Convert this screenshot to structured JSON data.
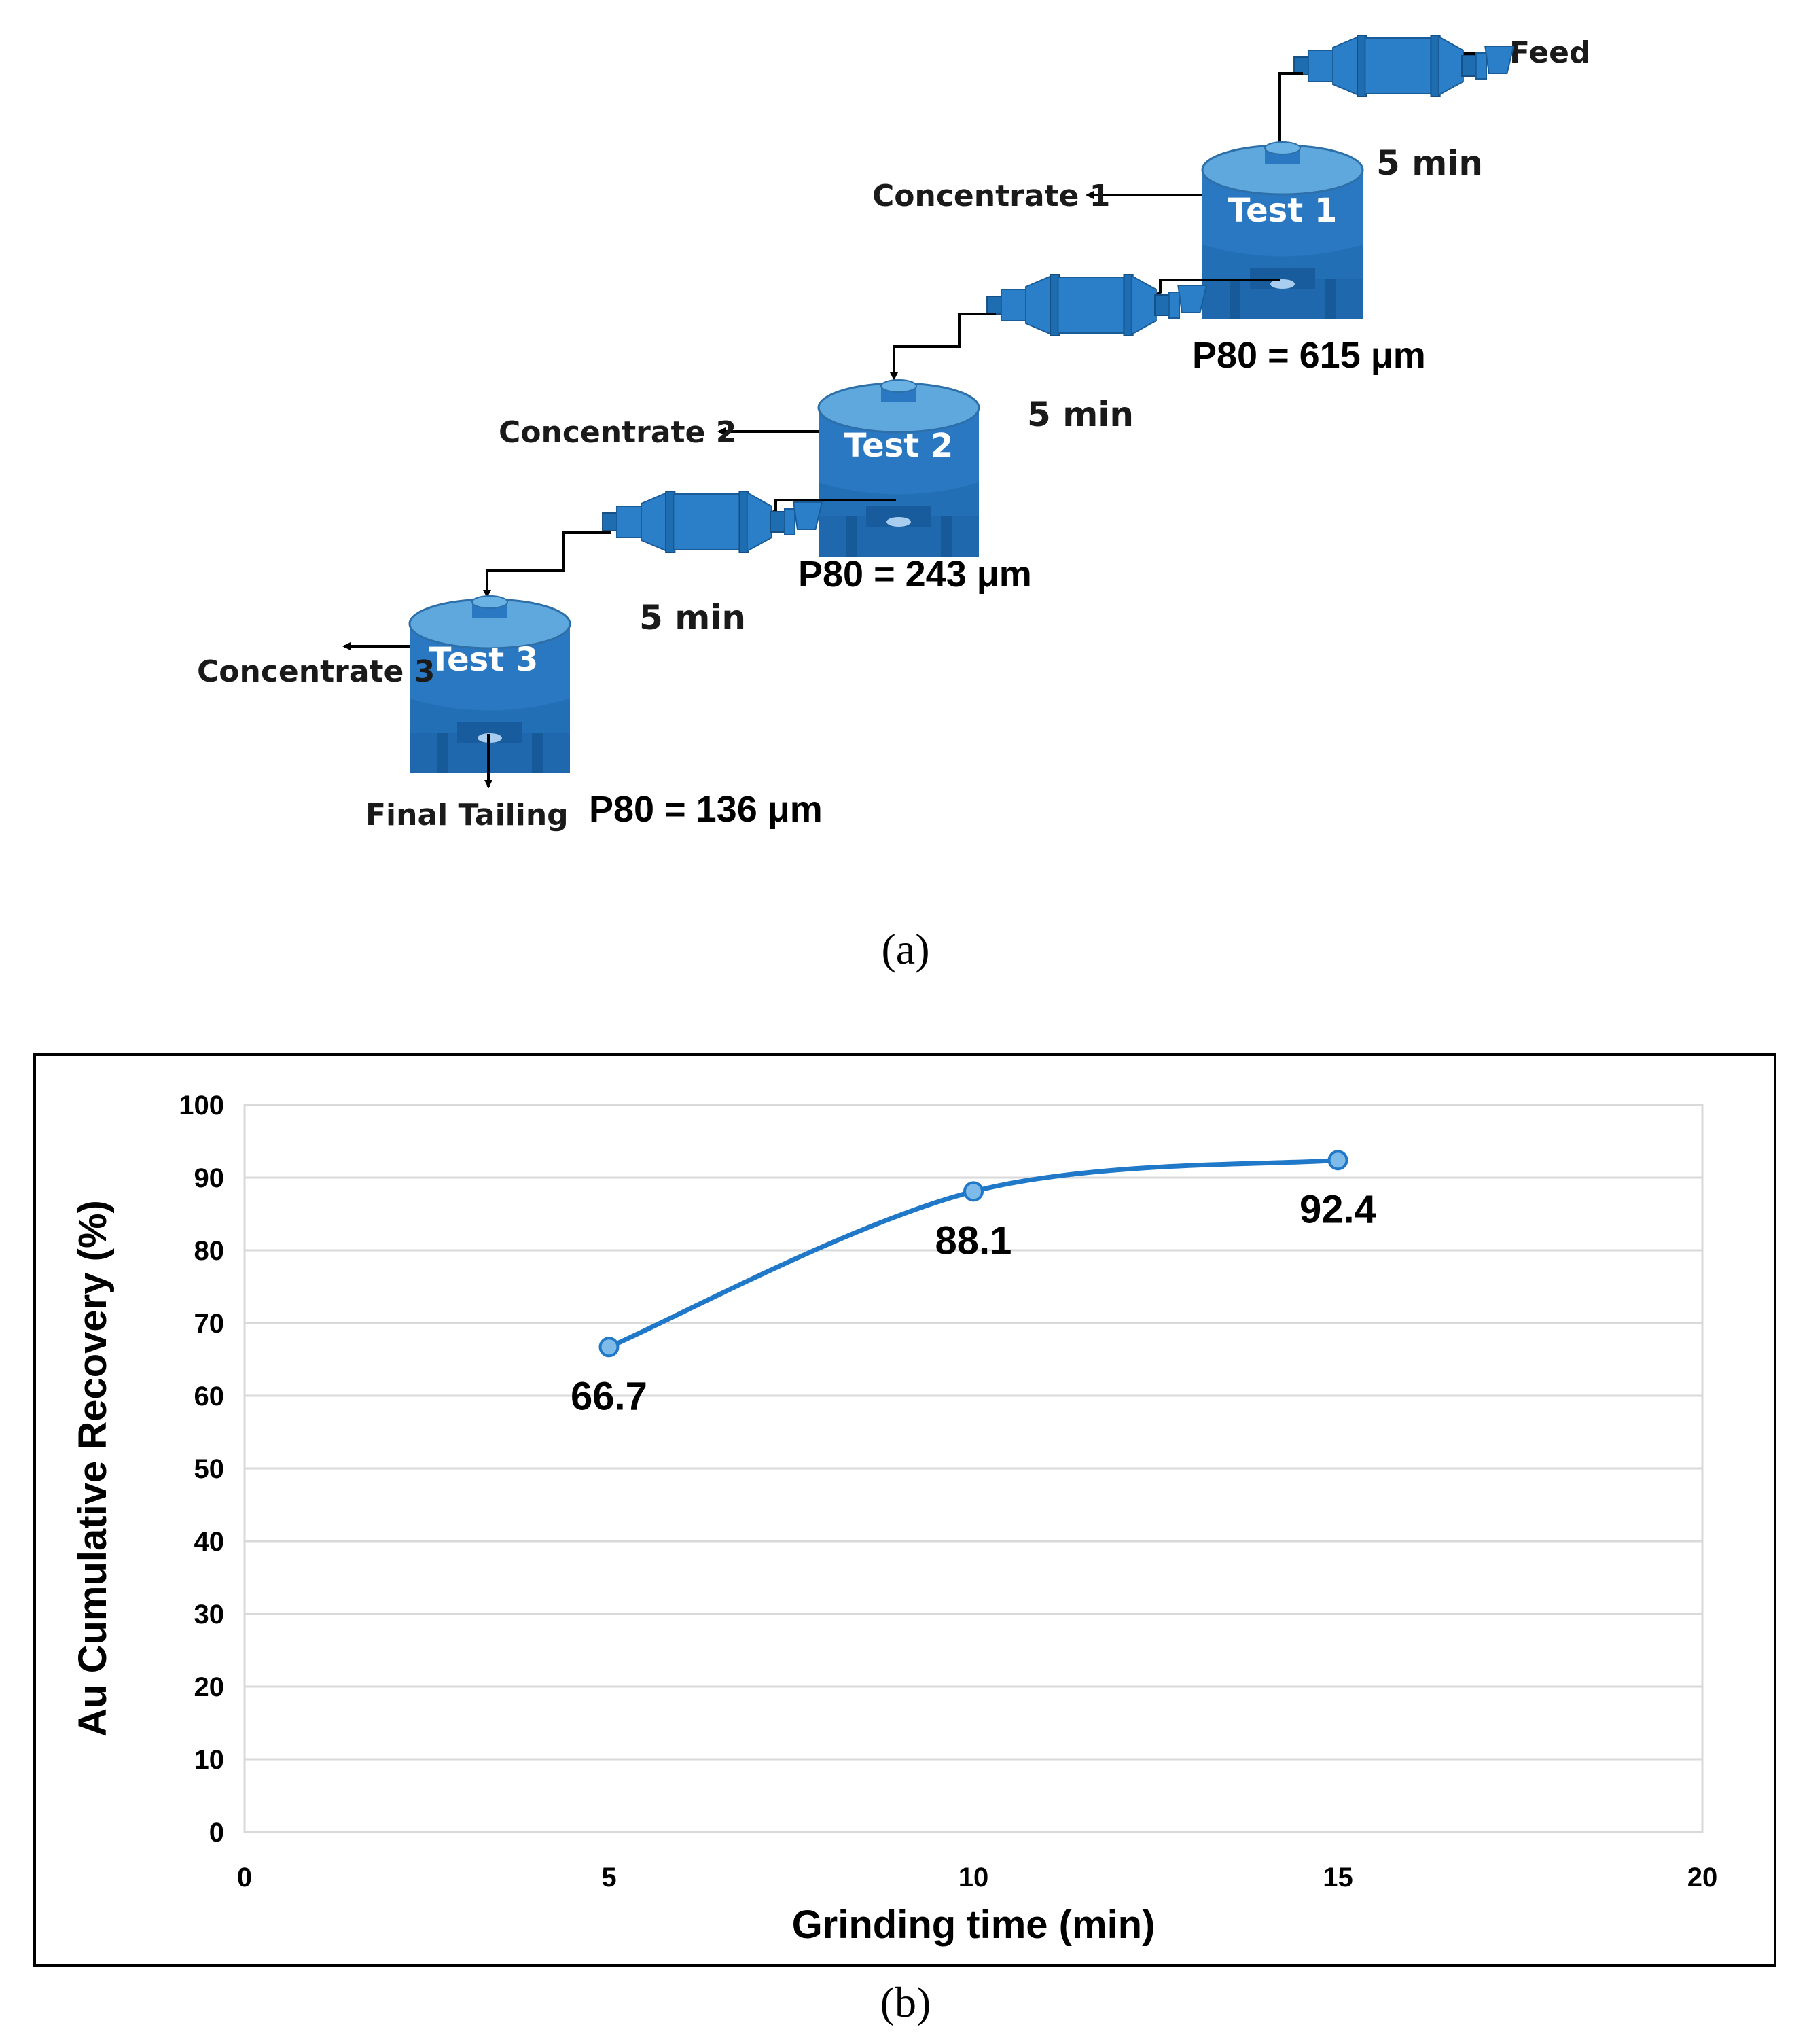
{
  "flowsheet": {
    "feed_label": "Feed",
    "stages": [
      {
        "tank": "Test 1",
        "concentrate": "Concentrate 1",
        "grind_time": "5 min",
        "p80": "P80 = 615 μm"
      },
      {
        "tank": "Test 2",
        "concentrate": "Concentrate 2",
        "grind_time": "5 min",
        "p80": "P80 = 243 μm"
      },
      {
        "tank": "Test 3",
        "concentrate": "Concentrate 3",
        "grind_time": "5 min",
        "p80": "P80 = 136 μm"
      }
    ],
    "tailing_label": "Final Tailing",
    "caption": "(a)"
  },
  "chart_caption": "(b)",
  "chart_data": {
    "type": "line",
    "title": "",
    "xlabel": "Grinding time (min)",
    "ylabel": "Au Cumulative Recovery (%)",
    "xlim": [
      0,
      20
    ],
    "ylim": [
      0,
      100
    ],
    "x_ticks": [
      0,
      5,
      10,
      15,
      20
    ],
    "y_ticks": [
      0,
      10,
      20,
      30,
      40,
      50,
      60,
      70,
      80,
      90,
      100
    ],
    "grid": true,
    "series": [
      {
        "name": "Au cumulative recovery",
        "color": "#1f78c8",
        "x": [
          5,
          10,
          15
        ],
        "y": [
          66.7,
          88.1,
          92.4
        ]
      }
    ],
    "data_labels": [
      "66.7",
      "88.1",
      "92.4"
    ]
  }
}
